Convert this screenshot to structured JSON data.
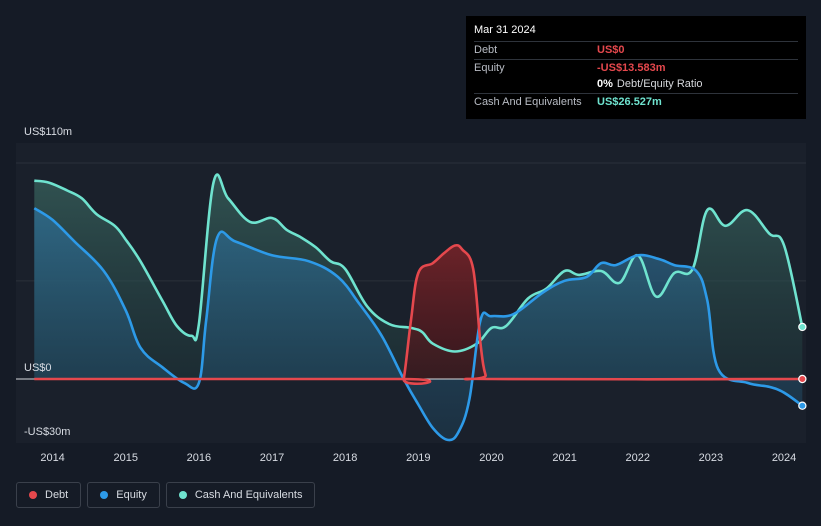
{
  "tooltip": {
    "date": "Mar 31 2024",
    "rows": [
      {
        "label": "Debt",
        "value": "US$0",
        "color": "#e5484d"
      },
      {
        "label": "Equity",
        "value": "-US$13.583m",
        "color": "#e5484d"
      },
      {
        "label": "",
        "value": "0%",
        "extra": "Debt/Equity Ratio",
        "color": "#ffffff"
      },
      {
        "label": "Cash And Equivalents",
        "value": "US$26.527m",
        "color": "#6fe3cf"
      }
    ]
  },
  "legend": [
    {
      "label": "Debt",
      "color": "#e5484d"
    },
    {
      "label": "Equity",
      "color": "#2d9ae8"
    },
    {
      "label": "Cash And Equivalents",
      "color": "#6fe3cf"
    }
  ],
  "chart_data": {
    "type": "area",
    "y_tick_labels": [
      "US$110m",
      "US$0",
      "-US$30m"
    ],
    "ylim": [
      -30,
      110
    ],
    "xlim": [
      2013.5,
      2024.3
    ],
    "x_ticks": [
      2014,
      2015,
      2016,
      2017,
      2018,
      2019,
      2020,
      2021,
      2022,
      2023,
      2024
    ],
    "x_tick_labels": [
      "2014",
      "2015",
      "2016",
      "2017",
      "2018",
      "2019",
      "2020",
      "2021",
      "2022",
      "2023",
      "2024"
    ],
    "series": [
      {
        "name": "Debt",
        "color": "#e5484d",
        "x": [
          2013.75,
          2018.75,
          2018.8,
          2018.9,
          2019.0,
          2019.2,
          2019.35,
          2019.5,
          2019.6,
          2019.75,
          2019.85,
          2019.92,
          2020.0,
          2024.25
        ],
        "y": [
          0,
          0,
          0,
          30,
          54,
          59,
          64,
          68,
          66,
          56,
          18,
          2,
          0,
          0
        ]
      },
      {
        "name": "Equity",
        "color": "#2d9ae8",
        "x": [
          2013.75,
          2014.0,
          2014.3,
          2014.7,
          2015.0,
          2015.2,
          2015.5,
          2015.8,
          2016.0,
          2016.1,
          2016.25,
          2016.5,
          2017.0,
          2017.5,
          2017.9,
          2018.2,
          2018.5,
          2018.8,
          2019.0,
          2019.2,
          2019.4,
          2019.55,
          2019.7,
          2019.85,
          2020.0,
          2020.3,
          2020.7,
          2021.0,
          2021.3,
          2021.5,
          2021.7,
          2022.0,
          2022.3,
          2022.5,
          2022.8,
          2022.95,
          2023.1,
          2023.5,
          2023.8,
          2024.0,
          2024.25
        ],
        "y": [
          87,
          81,
          70,
          55,
          35,
          16,
          6,
          -2,
          -2,
          30,
          72,
          70,
          63,
          60,
          52,
          38,
          22,
          0,
          -13,
          -25,
          -31,
          -27,
          -10,
          30,
          32,
          33,
          44,
          50,
          52,
          59,
          58,
          63,
          61,
          58,
          55,
          40,
          5,
          -2,
          -4,
          -7,
          -13.6
        ]
      },
      {
        "name": "Cash And Equivalents",
        "color": "#6fe3cf",
        "x": [
          2013.75,
          2013.95,
          2014.2,
          2014.4,
          2014.6,
          2014.85,
          2015.0,
          2015.2,
          2015.5,
          2015.7,
          2015.9,
          2016.0,
          2016.2,
          2016.4,
          2016.7,
          2017.0,
          2017.2,
          2017.4,
          2017.6,
          2017.8,
          2018.0,
          2018.3,
          2018.6,
          2018.9,
          2019.05,
          2019.2,
          2019.5,
          2019.8,
          2020.0,
          2020.2,
          2020.5,
          2020.75,
          2021.0,
          2021.2,
          2021.5,
          2021.75,
          2022.0,
          2022.25,
          2022.5,
          2022.75,
          2022.95,
          2023.2,
          2023.5,
          2023.8,
          2024.0,
          2024.25
        ],
        "y": [
          101,
          100,
          96,
          92,
          84,
          78,
          71,
          60,
          40,
          27,
          22,
          28,
          100,
          92,
          80,
          82,
          76,
          72,
          67,
          60,
          56,
          37,
          28,
          26,
          24,
          18,
          14,
          18,
          26,
          27,
          41,
          46,
          55,
          53,
          55,
          49,
          63,
          42,
          54,
          56,
          86,
          78,
          86,
          74,
          68,
          26.5
        ]
      }
    ]
  }
}
